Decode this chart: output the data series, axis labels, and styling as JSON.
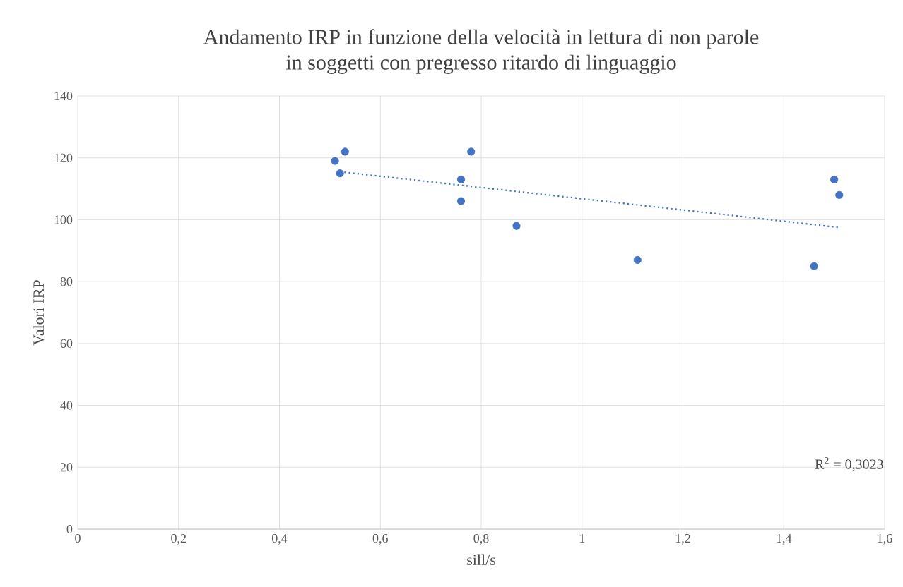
{
  "chart_data": {
    "type": "scatter",
    "title": "Andamento IRP in funzione della velocità in lettura di non parole\nin soggetti con pregresso ritardo di linguaggio",
    "xlabel": "sill/s",
    "ylabel": "Valori IRP",
    "x": [
      0.51,
      0.53,
      0.52,
      0.76,
      0.76,
      0.78,
      0.87,
      1.11,
      1.46,
      1.5,
      1.51
    ],
    "series": [
      {
        "color": "#4472c4",
        "marker": "circle",
        "values": [
          119,
          122,
          115,
          113,
          106,
          122,
          98,
          87,
          85,
          113,
          108
        ]
      },
      {
        "type": "line",
        "color": "#4472c4",
        "line_style": "dotted",
        "marker": "none",
        "x": [
          0.52,
          1.51
        ],
        "values": [
          115.5,
          97.5
        ]
      }
    ],
    "xlim": [
      0,
      1.6
    ],
    "ylim": [
      0,
      140
    ],
    "xticks": [
      0,
      {
        "value": 0.2,
        "label": "0,2"
      },
      {
        "value": 0.4,
        "label": "0,4"
      },
      {
        "value": 0.6,
        "label": "0,6"
      },
      {
        "value": 0.8,
        "label": "0,8"
      },
      1,
      {
        "value": 1.2,
        "label": "1,2"
      },
      {
        "value": 1.4,
        "label": "1,4"
      },
      {
        "value": 1.6,
        "label": "1,6"
      }
    ],
    "yticks": [
      0,
      20,
      40,
      60,
      80,
      100,
      120,
      140
    ],
    "grid": true,
    "annotations": [
      "R$^{2}$ = 0,3023"
    ]
  }
}
